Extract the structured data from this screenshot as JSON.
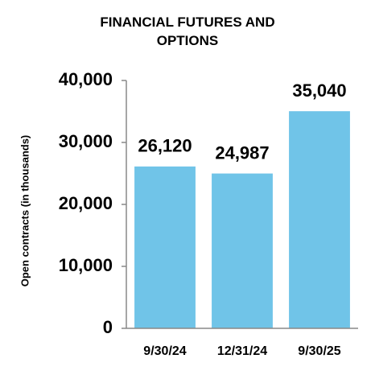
{
  "chart_data": {
    "type": "bar",
    "title": "FINANCIAL FUTURES AND OPTIONS",
    "y_axis_label": "Open contracts (in thousands)",
    "categories": [
      "9/30/24",
      "12/31/24",
      "9/30/25"
    ],
    "values": [
      26120,
      24987,
      35040
    ],
    "value_labels": [
      "26,120",
      "24,987",
      "35,040"
    ],
    "color": "#70c4e8",
    "ylim": [
      0,
      40000
    ],
    "yticks": [
      0,
      {
        "value": 10000,
        "label": "10,000"
      },
      {
        "value": 20000,
        "label": "20,000"
      },
      {
        "value": 30000,
        "label": "30,000"
      },
      {
        "value": 40000,
        "label": "40,000"
      }
    ],
    "grid": false
  }
}
